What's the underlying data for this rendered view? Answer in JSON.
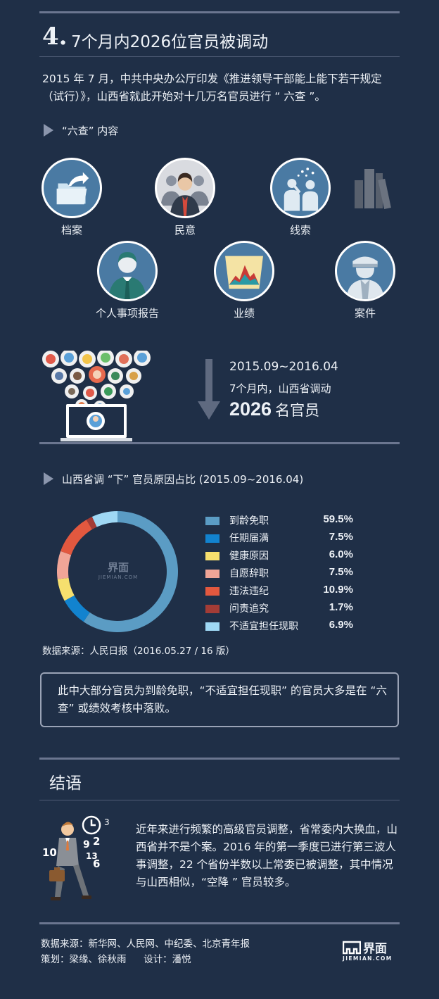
{
  "header": {
    "number": "4.",
    "title": "7个月内2026位官员被调动"
  },
  "intro": "2015 年 7 月，中共中央办公厅印发《推进领导干部能上能下若干规定（试行）》，山西省就此开始对十几万名官员进行 “ 六查 ”。",
  "six_checks": {
    "heading": "“六查” 内容",
    "items": [
      {
        "label": "档案",
        "icon": "folder-icon"
      },
      {
        "label": "民意",
        "icon": "crowd-icon"
      },
      {
        "label": "线索",
        "icon": "clue-icon"
      },
      {
        "label": "个人事项报告",
        "icon": "official-icon"
      },
      {
        "label": "业绩",
        "icon": "performance-chart-icon"
      },
      {
        "label": "案件",
        "icon": "police-icon"
      }
    ]
  },
  "period": {
    "range": "2015.09~2016.04",
    "line": "7个月内，山西省调动",
    "number": "2026",
    "unit": "名官员"
  },
  "reasons": {
    "heading": "山西省调 “下” 官员原因占比 (2015.09~2016.04)",
    "watermark": {
      "name": "界面",
      "site": "JIEMIAN.COM"
    },
    "source": "数据来源：人民日报（2016.05.27 / 16 版）"
  },
  "chart_data": {
    "type": "pie",
    "donut": true,
    "categories": [
      "到龄免职",
      "任期届满",
      "健康原因",
      "自愿辞职",
      "违法违纪",
      "问责追究",
      "不适宜担任现职"
    ],
    "values": [
      59.5,
      7.5,
      6.0,
      7.5,
      10.9,
      1.7,
      6.9
    ],
    "value_labels": [
      "59.5%",
      "7.5%",
      "6.0%",
      "7.5%",
      "10.9%",
      "1.7%",
      "6.9%"
    ],
    "colors": [
      "#5b9cc4",
      "#1283cf",
      "#f6df6e",
      "#f0a597",
      "#e2583f",
      "#a33c36",
      "#9fd8f4"
    ],
    "legend_position": "right"
  },
  "note": "此中大部分官员为到龄免职，“不适宜担任现职” 的官员大多是在 “六查” 或绩效考核中落败。",
  "ending": {
    "title": "结语",
    "text": "近年来进行频繁的高级官员调整，省常委内大换血，山西省并不是个案。2016 年的第一季度已进行第三波人事调整，22 个省份半数以上常委已被调整，其中情况与山西相似，“空降 ” 官员较多。"
  },
  "credits": {
    "source": "数据来源：新华网、人民网、中纪委、北京青年报",
    "planning": "策划：梁缘、徐秋雨",
    "design": "设计：潘悦",
    "logo_name": "界面",
    "logo_site": "JIEMIAN.COM"
  },
  "colors": {
    "background": "#1f2f47",
    "rule": "#6b7690",
    "icon_bg": "#4a7aa3"
  }
}
